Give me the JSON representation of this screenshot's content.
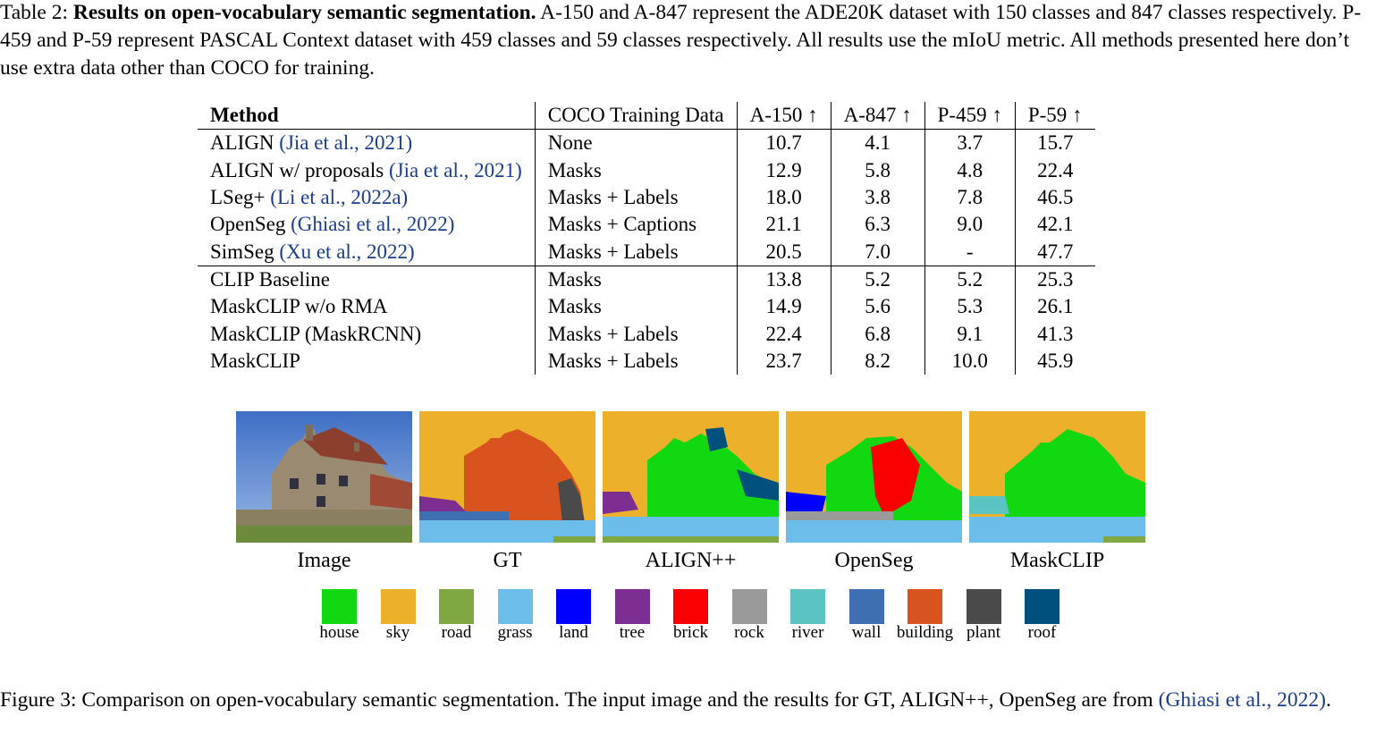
{
  "table_caption": {
    "label": "Table 2:",
    "bold_title": "Results on open-vocabulary semantic segmentation.",
    "text": " A-150 and A-847 represent the ADE20K dataset with 150 classes and 847 classes respectively. P-459 and P-59 represent PASCAL Context dataset with 459 classes and 59 classes respectively. All results use the mIoU metric. All methods presented here don’t use extra data other than COCO for training."
  },
  "table": {
    "headers": [
      "Method",
      "COCO Training Data",
      "A-150 ↑",
      "A-847 ↑",
      "P-459 ↑",
      "P-59 ↑"
    ],
    "rows": [
      {
        "method": "ALIGN ",
        "cite": "(Jia et al., 2021)",
        "data": "None",
        "vals": [
          "10.7",
          "4.1",
          "3.7",
          "15.7"
        ]
      },
      {
        "method": "ALIGN w/ proposals ",
        "cite": "(Jia et al., 2021)",
        "data": "Masks",
        "vals": [
          "12.9",
          "5.8",
          "4.8",
          "22.4"
        ]
      },
      {
        "method": "LSeg+ ",
        "cite": "(Li et al., 2022a)",
        "data": "Masks + Labels",
        "vals": [
          "18.0",
          "3.8",
          "7.8",
          "46.5"
        ]
      },
      {
        "method": "OpenSeg ",
        "cite": "(Ghiasi et al., 2022)",
        "data": "Masks + Captions",
        "vals": [
          "21.1",
          "6.3",
          "9.0",
          "42.1"
        ]
      },
      {
        "method": "SimSeg ",
        "cite": "(Xu et al., 2022)",
        "data": "Masks + Labels",
        "vals": [
          "20.5",
          "7.0",
          "-",
          "47.7"
        ]
      },
      {
        "method": "CLIP Baseline",
        "cite": "",
        "data": "Masks",
        "vals": [
          "13.8",
          "5.2",
          "5.2",
          "25.3"
        ]
      },
      {
        "method": "MaskCLIP w/o RMA",
        "cite": "",
        "data": "Masks",
        "vals": [
          "14.9",
          "5.6",
          "5.3",
          "26.1"
        ]
      },
      {
        "method": "MaskCLIP (MaskRCNN)",
        "cite": "",
        "data": "Masks + Labels",
        "vals": [
          "22.4",
          "6.8",
          "9.1",
          "41.3"
        ]
      },
      {
        "method": "MaskCLIP",
        "cite": "",
        "data": "Masks + Labels",
        "vals": [
          "23.7",
          "8.2",
          "10.0",
          "45.9"
        ]
      }
    ]
  },
  "figure": {
    "panels": [
      "Image",
      "GT",
      "ALIGN++",
      "OpenSeg",
      "MaskCLIP"
    ],
    "legend": [
      {
        "label": "house",
        "color": "#12d812"
      },
      {
        "label": "sky",
        "color": "#ecb02a"
      },
      {
        "label": "road",
        "color": "#7fa742"
      },
      {
        "label": "grass",
        "color": "#6cbde9"
      },
      {
        "label": "land",
        "color": "#0000ff"
      },
      {
        "label": "tree",
        "color": "#7c2f91"
      },
      {
        "label": "brick",
        "color": "#fb0000"
      },
      {
        "label": "rock",
        "color": "#9a9a9a"
      },
      {
        "label": "river",
        "color": "#5cc3c3"
      },
      {
        "label": "wall",
        "color": "#3f6fb3"
      },
      {
        "label": "building",
        "color": "#d9531e"
      },
      {
        "label": "plant",
        "color": "#4a4a4a"
      },
      {
        "label": "roof",
        "color": "#00507e"
      }
    ]
  },
  "figure_caption": {
    "label": "Figure 3:",
    "text": " Comparison on open-vocabulary semantic segmentation. The input image and the results for GT, ALIGN++, OpenSeg are from ",
    "cite": "(Ghiasi et al., 2022)",
    "end": "."
  }
}
